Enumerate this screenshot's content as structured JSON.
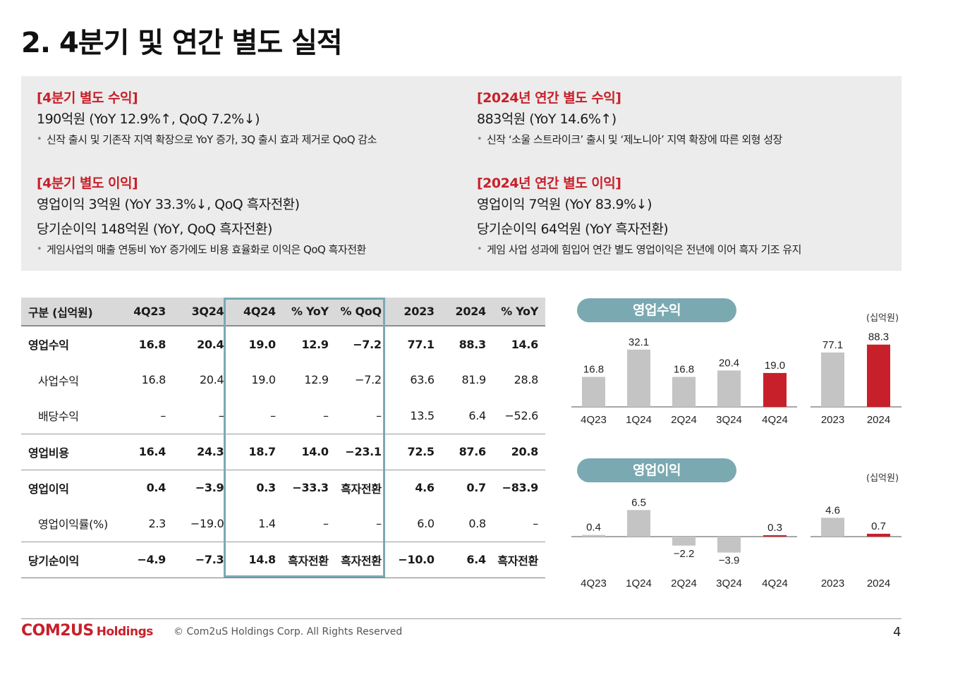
{
  "title": "2. 4분기 및 연간 별도 실적",
  "summary": {
    "left": [
      {
        "heading": "[4분기 별도 수익]",
        "lines": [
          "190억원 (YoY 12.9%↑, QoQ 7.2%↓)"
        ],
        "bullet": "신작 출시 및 기존작 지역 확장으로 YoY 증가, 3Q 출시 효과 제거로 QoQ 감소"
      },
      {
        "heading": "[4분기 별도 이익]",
        "lines": [
          "영업이익 3억원 (YoY 33.3%↓, QoQ 흑자전환)",
          "당기순이익 148억원 (YoY, QoQ 흑자전환)"
        ],
        "bullet": "게임사업의 매출 연동비 YoY 증가에도 비용 효율화로 이익은 QoQ 흑자전환"
      }
    ],
    "right": [
      {
        "heading": "[2024년 연간 별도 수익]",
        "lines": [
          "883억원 (YoY 14.6%↑)"
        ],
        "bullet": "신작 ‘소울 스트라이크’ 출시 및 ‘제노니아’ 지역 확장에 따른 외형 성장"
      },
      {
        "heading": "[2024년 연간 별도 이익]",
        "lines": [
          "영업이익 7억원 (YoY 83.9%↓)",
          "당기순이익 64억원 (YoY 흑자전환)"
        ],
        "bullet": "게임 사업 성과에 힘입어 연간 별도 영업이익은 전년에 이어 흑자 기조 유지"
      }
    ]
  },
  "table": {
    "headers": [
      "구분 (십억원)",
      "4Q23",
      "3Q24",
      "4Q24",
      "% YoY",
      "% QoQ",
      "2023",
      "2024",
      "% YoY"
    ],
    "rows": [
      {
        "label": "영업수익",
        "values": [
          "16.8",
          "20.4",
          "19.0",
          "12.9",
          "−7.2",
          "77.1",
          "88.3",
          "14.6"
        ]
      },
      {
        "label": "사업수익",
        "values": [
          "16.8",
          "20.4",
          "19.0",
          "12.9",
          "−7.2",
          "63.6",
          "81.9",
          "28.8"
        ]
      },
      {
        "label": "배당수익",
        "values": [
          "–",
          "–",
          "–",
          "–",
          "–",
          "13.5",
          "6.4",
          "−52.6"
        ]
      },
      {
        "label": "영업비용",
        "values": [
          "16.4",
          "24.3",
          "18.7",
          "14.0",
          "−23.1",
          "72.5",
          "87.6",
          "20.8"
        ]
      },
      {
        "label": "영업이익",
        "values": [
          "0.4",
          "−3.9",
          "0.3",
          "−33.3",
          "흑자전환",
          "4.6",
          "0.7",
          "−83.9"
        ]
      },
      {
        "label": "영업이익률(%)",
        "values": [
          "2.3",
          "−19.0",
          "1.4",
          "–",
          "–",
          "6.0",
          "0.8",
          "–"
        ]
      },
      {
        "label": "당기순이익",
        "values": [
          "−4.9",
          "−7.3",
          "14.8",
          "흑자전환",
          "흑자전환",
          "−10.0",
          "6.4",
          "흑자전환"
        ]
      }
    ]
  },
  "chart_data": [
    {
      "type": "bar",
      "title": "영업수익",
      "unit": "(십억원)",
      "categories": [
        "4Q23",
        "1Q24",
        "2Q24",
        "3Q24",
        "4Q24"
      ],
      "values": [
        16.8,
        32.1,
        16.8,
        20.4,
        19.0
      ],
      "highlight_index": 4,
      "annual_categories": [
        "2023",
        "2024"
      ],
      "annual_values": [
        77.1,
        88.3
      ],
      "annual_highlight_index": 1,
      "colors": {
        "bar": "#c4c4c4",
        "highlight": "#c8202a",
        "pill": "#7aa9b2"
      }
    },
    {
      "type": "bar",
      "title": "영업이익",
      "unit": "(십억원)",
      "categories": [
        "4Q23",
        "1Q24",
        "2Q24",
        "3Q24",
        "4Q24"
      ],
      "values": [
        0.4,
        6.5,
        -2.2,
        -3.9,
        0.3
      ],
      "highlight_index": 4,
      "annual_categories": [
        "2023",
        "2024"
      ],
      "annual_values": [
        4.6,
        0.7
      ],
      "annual_highlight_index": 1,
      "colors": {
        "bar": "#c4c4c4",
        "highlight": "#c8202a",
        "pill": "#7aa9b2"
      }
    }
  ],
  "footer": {
    "logo": "COM2US",
    "logo_suffix": "Holdings",
    "copyright": "© Com2uS Holdings Corp. All Rights Reserved",
    "page_number": "4"
  }
}
